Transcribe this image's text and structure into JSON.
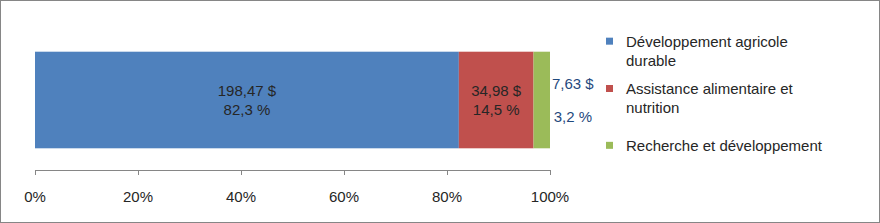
{
  "chart_data": {
    "type": "bar",
    "orientation": "horizontal",
    "stacked": true,
    "data_labels": true,
    "grid": false,
    "legend": "right",
    "categories": [
      null
    ],
    "series": [
      {
        "name": "Développement agricole durable",
        "color": "#4f81bd",
        "values": [
          82.3
        ],
        "value_labels": [
          "82,3 %"
        ],
        "amounts": [
          198.47
        ],
        "amount_labels": [
          "198,47 $"
        ]
      },
      {
        "name": "Assistance alimentaire et nutrition",
        "color": "#c0504d",
        "values": [
          14.5
        ],
        "value_labels": [
          "14,5 %"
        ],
        "amounts": [
          34.98
        ],
        "amount_labels": [
          "34,98 $"
        ]
      },
      {
        "name": "Recherche et développement",
        "color": "#9bbb59",
        "values": [
          3.2
        ],
        "value_labels": [
          "3,2 %"
        ],
        "amounts": [
          7.63
        ],
        "amount_labels": [
          "7,63 $"
        ]
      }
    ],
    "xlim": [
      0,
      100
    ],
    "xticks": [
      {
        "value": 0,
        "label": "0%"
      },
      {
        "value": 20,
        "label": "20%"
      },
      {
        "value": 40,
        "label": "40%"
      },
      {
        "value": 60,
        "label": "60%"
      },
      {
        "value": 80,
        "label": "80%"
      },
      {
        "value": 100,
        "label": "100%"
      }
    ]
  }
}
